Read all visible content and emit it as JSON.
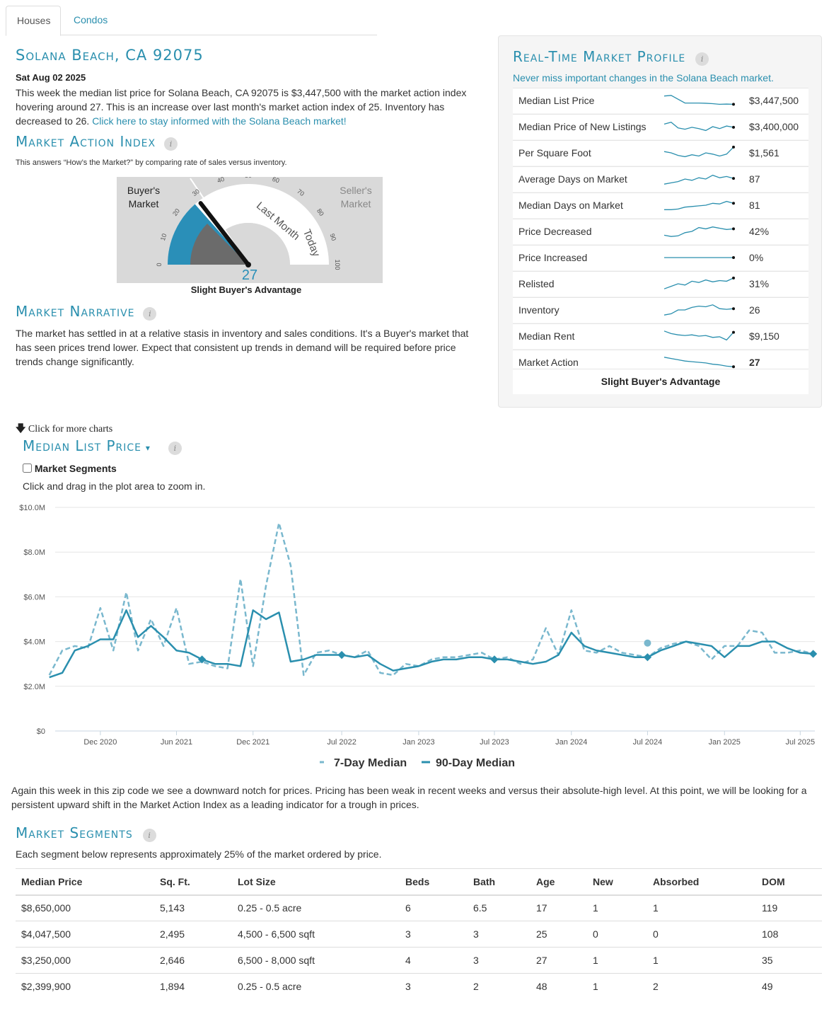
{
  "tabs": [
    {
      "label": "Houses"
    },
    {
      "label": "Condos"
    }
  ],
  "header": {
    "location": "Solana Beach, CA 92075",
    "date": "Sat Aug 02 2025",
    "summary": "This week the median list price for Solana Beach, CA 92075 is $3,447,500 with the market action index hovering around 27. This is an increase over last month's market action index of 25. Inventory has decreased to 26.",
    "link": "Click here to stay informed with the Solana Beach market!"
  },
  "mai": {
    "title": "Market Action Index",
    "subtitle": "This answers “How’s the Market?” by comparing rate of sales versus inventory.",
    "buyers_label_1": "Buyer's",
    "buyers_label_2": "Market",
    "sellers_label_1": "Seller's",
    "sellers_label_2": "Market",
    "last_month_label": "Last Month",
    "today_label": "Today",
    "value": 27,
    "last_month_value": 25,
    "ticks": [
      "0",
      "10",
      "20",
      "30",
      "40",
      "50",
      "60",
      "70",
      "80",
      "90",
      "100"
    ],
    "verdict": "Slight Buyer's Advantage"
  },
  "narrative": {
    "title": "Market Narrative",
    "text": "The market has settled in at a relative stasis in inventory and sales conditions. It's a Buyer's market that has seen prices trend lower. Expect that consistent up trends in demand will be required before price trends change significantly."
  },
  "profile": {
    "title": "Real-Time Market Profile",
    "subtitle": "Never miss important changes in the Solana Beach market.",
    "rows": [
      {
        "label": "Median List Price",
        "value": "$3,447,500",
        "trend": [
          0.85,
          0.9,
          0.6,
          0.3,
          0.3,
          0.3,
          0.28,
          0.25,
          0.2,
          0.22,
          0.2
        ]
      },
      {
        "label": "Median Price of New Listings",
        "value": "$3,400,000",
        "trend": [
          0.7,
          0.85,
          0.4,
          0.3,
          0.45,
          0.35,
          0.2,
          0.5,
          0.35,
          0.55,
          0.45
        ]
      },
      {
        "label": "Per Square Foot",
        "value": "$1,561",
        "trend": [
          0.6,
          0.5,
          0.3,
          0.2,
          0.35,
          0.25,
          0.5,
          0.4,
          0.25,
          0.4,
          0.95
        ]
      },
      {
        "label": "Average Days on Market",
        "value": "87",
        "trend": [
          0.1,
          0.2,
          0.3,
          0.5,
          0.4,
          0.6,
          0.5,
          0.8,
          0.6,
          0.7,
          0.55
        ]
      },
      {
        "label": "Median Days on Market",
        "value": "81",
        "trend": [
          0.15,
          0.15,
          0.2,
          0.35,
          0.4,
          0.45,
          0.5,
          0.65,
          0.6,
          0.8,
          0.65
        ]
      },
      {
        "label": "Price Decreased",
        "value": "42%",
        "trend": [
          0.2,
          0.1,
          0.15,
          0.4,
          0.5,
          0.8,
          0.7,
          0.85,
          0.75,
          0.65,
          0.7
        ]
      },
      {
        "label": "Price Increased",
        "value": "0%",
        "trend": [
          0.5,
          0.5,
          0.5,
          0.5,
          0.5,
          0.5,
          0.5,
          0.5,
          0.5,
          0.5,
          0.5
        ]
      },
      {
        "label": "Relisted",
        "value": "31%",
        "trend": [
          0.1,
          0.3,
          0.5,
          0.4,
          0.7,
          0.6,
          0.8,
          0.65,
          0.75,
          0.7,
          0.95
        ]
      },
      {
        "label": "Inventory",
        "value": "26",
        "trend": [
          0.1,
          0.2,
          0.5,
          0.5,
          0.7,
          0.8,
          0.75,
          0.9,
          0.6,
          0.55,
          0.6
        ]
      },
      {
        "label": "Median Rent",
        "value": "$9,150",
        "trend": [
          0.9,
          0.7,
          0.6,
          0.55,
          0.6,
          0.5,
          0.55,
          0.4,
          0.45,
          0.2,
          0.8
        ]
      },
      {
        "label": "Market Action",
        "value": "27",
        "trend": [
          0.9,
          0.8,
          0.7,
          0.6,
          0.55,
          0.5,
          0.45,
          0.35,
          0.3,
          0.2,
          0.15
        ]
      }
    ],
    "verdict": "Slight Buyer's Advantage"
  },
  "more_charts": "Click for more charts",
  "chart_section": {
    "title": "Median List Price",
    "segments_checkbox": "Market Segments",
    "zoom_hint": "Click and drag in the plot area to zoom in.",
    "commentary": "Again this week in this zip code we see a downward notch for prices. Pricing has been weak in recent weeks and versus their absolute-high level. At this point, we will be looking for a persistent upward shift in the Market Action Index as a leading indicator for a trough in prices."
  },
  "chart_data": {
    "type": "line",
    "title": "",
    "ylim": [
      0,
      10000000
    ],
    "y_ticks": [
      "$0",
      "$2.0M",
      "$4.0M",
      "$6.0M",
      "$8.0M",
      "$10.0M"
    ],
    "x_ticks": [
      "Dec 2020",
      "Jun 2021",
      "Dec 2021",
      "Jul 2022",
      "Jan 2023",
      "Jul 2023",
      "Jan 2024",
      "Jul 2024",
      "Jan 2025",
      "Jul 2025"
    ],
    "x_range": [
      "2020-08",
      "2025-08"
    ],
    "series": [
      {
        "name": "7-Day Median",
        "style": "dashed",
        "color": "#7ab8ce",
        "x": [
          "2020-08-01",
          "2020-09-01",
          "2020-10-01",
          "2020-11-01",
          "2020-12-01",
          "2021-01-01",
          "2021-02-01",
          "2021-03-01",
          "2021-04-01",
          "2021-05-01",
          "2021-06-01",
          "2021-07-01",
          "2021-08-01",
          "2021-09-01",
          "2021-10-01",
          "2021-11-01",
          "2021-12-01",
          "2022-01-01",
          "2022-02-01",
          "2022-03-01",
          "2022-04-01",
          "2022-05-01",
          "2022-06-01",
          "2022-07-01",
          "2022-08-01",
          "2022-09-01",
          "2022-10-01",
          "2022-11-01",
          "2022-12-01",
          "2023-01-01",
          "2023-02-01",
          "2023-03-01",
          "2023-04-01",
          "2023-05-01",
          "2023-06-01",
          "2023-07-01",
          "2023-08-01",
          "2023-09-01",
          "2023-10-01",
          "2023-11-01",
          "2023-12-01",
          "2024-01-01",
          "2024-02-01",
          "2024-03-01",
          "2024-04-01",
          "2024-05-01",
          "2024-06-01",
          "2024-07-01",
          "2024-08-01",
          "2024-09-01",
          "2024-10-01",
          "2024-11-01",
          "2024-12-01",
          "2025-01-01",
          "2025-02-01",
          "2025-03-01",
          "2025-04-01",
          "2025-05-01",
          "2025-06-01",
          "2025-07-01",
          "2025-08-01"
        ],
        "values": [
          2500000,
          3600000,
          3800000,
          3700000,
          5500000,
          3600000,
          6200000,
          3600000,
          5000000,
          3800000,
          5500000,
          3000000,
          3100000,
          2900000,
          2800000,
          6800000,
          2900000,
          6500000,
          9300000,
          7400000,
          2500000,
          3500000,
          3600000,
          3400000,
          3300000,
          3600000,
          2600000,
          2500000,
          3000000,
          2900000,
          3200000,
          3300000,
          3300000,
          3400000,
          3500000,
          3200000,
          3300000,
          3000000,
          3200000,
          4600000,
          3400000,
          5400000,
          3600000,
          3500000,
          3800000,
          3500000,
          3400000,
          3300000,
          3700000,
          3900000,
          4000000,
          3800000,
          3200000,
          3800000,
          3800000,
          4500000,
          4400000,
          3500000,
          3500000,
          3600000,
          3450000
        ]
      },
      {
        "name": "90-Day Median",
        "style": "solid",
        "color": "#2a8fae",
        "x": [
          "2020-08-01",
          "2020-09-01",
          "2020-10-01",
          "2020-11-01",
          "2020-12-01",
          "2021-01-01",
          "2021-02-01",
          "2021-03-01",
          "2021-04-01",
          "2021-05-01",
          "2021-06-01",
          "2021-07-01",
          "2021-08-01",
          "2021-09-01",
          "2021-10-01",
          "2021-11-01",
          "2021-12-01",
          "2022-01-01",
          "2022-02-01",
          "2022-03-01",
          "2022-04-01",
          "2022-05-01",
          "2022-06-01",
          "2022-07-01",
          "2022-08-01",
          "2022-09-01",
          "2022-10-01",
          "2022-11-01",
          "2022-12-01",
          "2023-01-01",
          "2023-02-01",
          "2023-03-01",
          "2023-04-01",
          "2023-05-01",
          "2023-06-01",
          "2023-07-01",
          "2023-08-01",
          "2023-09-01",
          "2023-10-01",
          "2023-11-01",
          "2023-12-01",
          "2024-01-01",
          "2024-02-01",
          "2024-03-01",
          "2024-04-01",
          "2024-05-01",
          "2024-06-01",
          "2024-07-01",
          "2024-08-01",
          "2024-09-01",
          "2024-10-01",
          "2024-11-01",
          "2024-12-01",
          "2025-01-01",
          "2025-02-01",
          "2025-03-01",
          "2025-04-01",
          "2025-05-01",
          "2025-06-01",
          "2025-07-01",
          "2025-08-01"
        ],
        "values": [
          2400000,
          2600000,
          3600000,
          3800000,
          4100000,
          4100000,
          5400000,
          4200000,
          4700000,
          4200000,
          3600000,
          3500000,
          3200000,
          3000000,
          3000000,
          2900000,
          5400000,
          5000000,
          5300000,
          3100000,
          3200000,
          3400000,
          3400000,
          3400000,
          3300000,
          3400000,
          3000000,
          2700000,
          2800000,
          2900000,
          3100000,
          3200000,
          3200000,
          3300000,
          3300000,
          3200000,
          3200000,
          3100000,
          3000000,
          3100000,
          3400000,
          4400000,
          3800000,
          3600000,
          3500000,
          3400000,
          3300000,
          3300000,
          3600000,
          3800000,
          4000000,
          3900000,
          3800000,
          3300000,
          3800000,
          3800000,
          4000000,
          4000000,
          3700000,
          3500000,
          3450000
        ]
      }
    ],
    "legend": {
      "placement": "bottom"
    }
  },
  "segments": {
    "title": "Market Segments",
    "subtitle": "Each segment below represents approximately 25% of the market ordered by price.",
    "headers": [
      "Median Price",
      "Sq. Ft.",
      "Lot Size",
      "Beds",
      "Bath",
      "Age",
      "New",
      "Absorbed",
      "DOM"
    ],
    "rows": [
      [
        "$8,650,000",
        "5,143",
        "0.25 - 0.5 acre",
        "6",
        "6.5",
        "17",
        "1",
        "1",
        "119"
      ],
      [
        "$4,047,500",
        "2,495",
        "4,500 - 6,500 sqft",
        "3",
        "3",
        "25",
        "0",
        "0",
        "108"
      ],
      [
        "$3,250,000",
        "2,646",
        "6,500 - 8,000 sqft",
        "4",
        "3",
        "27",
        "1",
        "1",
        "35"
      ],
      [
        "$2,399,900",
        "1,894",
        "0.25 - 0.5 acre",
        "3",
        "2",
        "48",
        "1",
        "2",
        "49"
      ]
    ]
  }
}
